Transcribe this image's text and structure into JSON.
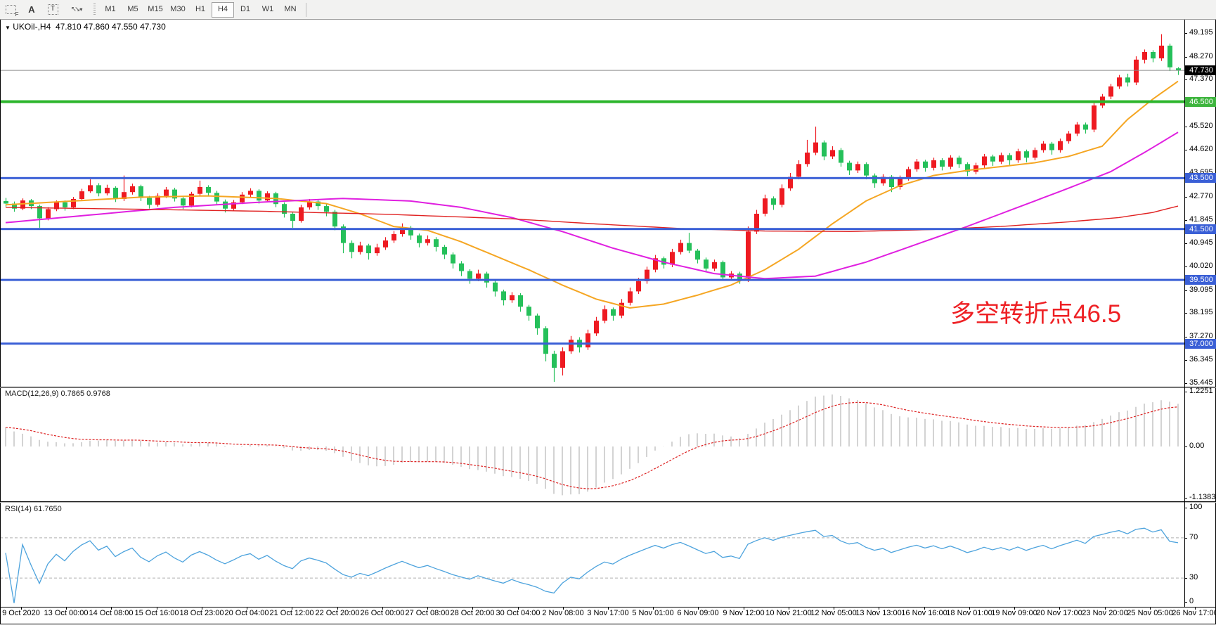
{
  "toolbar": {
    "icons": [
      {
        "name": "fibonacci-tool-icon",
        "glyph": "F"
      },
      {
        "name": "text-label-tool-icon",
        "glyph": "A"
      },
      {
        "name": "text-tool-icon",
        "glyph": "T"
      },
      {
        "name": "arrow-objects-icon",
        "glyph": "arrows"
      }
    ],
    "timeframes": [
      {
        "label": "M1",
        "active": false
      },
      {
        "label": "M5",
        "active": false
      },
      {
        "label": "M15",
        "active": false
      },
      {
        "label": "M30",
        "active": false
      },
      {
        "label": "H1",
        "active": false
      },
      {
        "label": "H4",
        "active": true
      },
      {
        "label": "D1",
        "active": false
      },
      {
        "label": "W1",
        "active": false
      },
      {
        "label": "MN",
        "active": false
      }
    ]
  },
  "title": {
    "symbol_period": "UKOil-,H4",
    "ohlc": "47.810 47.860 47.550 47.730"
  },
  "annotation": {
    "text": "多空转折点46.5"
  },
  "colors": {
    "bull": "#ee1a21",
    "bear": "#25c05a",
    "ma_fast": "#f5a623",
    "ma_mid": "#e020e0",
    "ma_slow": "#e02222",
    "level_blue": "#3a5fd6",
    "level_green": "#2cb52c",
    "current_line": "#8a8a8a",
    "badge_current": "#000000",
    "badge_green": "#3eb53e",
    "badge_blue": "#3a5fd6",
    "rsi_line": "#4da3dd",
    "macd_hist": "#c0c0c0",
    "macd_signal": "#dd2222",
    "annotation_red": "#ee2024"
  },
  "price_axis": {
    "labels": [
      "49.195",
      "48.270",
      "47.370",
      "45.520",
      "44.620",
      "43.695",
      "42.770",
      "41.845",
      "40.945",
      "40.020",
      "39.095",
      "38.195",
      "37.270",
      "36.345",
      "35.445"
    ],
    "badges": [
      {
        "text": "47.730",
        "type": "current"
      },
      {
        "text": "46.500",
        "type": "green"
      },
      {
        "text": "43.500",
        "type": "blue"
      },
      {
        "text": "41.500",
        "type": "blue"
      },
      {
        "text": "39.500",
        "type": "blue"
      },
      {
        "text": "37.000",
        "type": "blue"
      }
    ]
  },
  "levels": {
    "green": [
      46.5
    ],
    "blue": [
      43.5,
      41.5,
      39.5,
      37.0
    ],
    "current": 47.73
  },
  "macd": {
    "name": "MACD(12,26,9)",
    "values": "0.7865 0.9768",
    "axis": [
      "1.2251",
      "0.00",
      "-1.1383"
    ],
    "params": {
      "fast": 12,
      "slow": 26,
      "signal": 9
    },
    "warmup_offset": 0.5
  },
  "rsi": {
    "name": "RSI(14)",
    "value": "61.7650",
    "axis": [
      "100",
      "70",
      "30",
      "0"
    ],
    "period": 14
  },
  "time_axis": {
    "labels": [
      "9 Oct 2020",
      "13 Oct 00:00",
      "14 Oct 08:00",
      "15 Oct 16:00",
      "18 Oct 23:00",
      "20 Oct 04:00",
      "21 Oct 12:00",
      "22 Oct 20:00",
      "26 Oct 00:00",
      "27 Oct 08:00",
      "28 Oct 20:00",
      "30 Oct 04:00",
      "2 Nov 08:00",
      "3 Nov 17:00",
      "5 Nov 01:00",
      "6 Nov 09:00",
      "9 Nov 12:00",
      "10 Nov 21:00",
      "12 Nov 05:00",
      "13 Nov 13:00",
      "16 Nov 16:00",
      "18 Nov 01:00",
      "19 Nov 09:00",
      "20 Nov 17:00",
      "23 Nov 20:00",
      "25 Nov 05:00",
      "26 Nov 17:00"
    ]
  },
  "chart_data": {
    "type": "candlestick",
    "symbol": "UKOil-",
    "period": "H4",
    "ylim": [
      35.445,
      49.195
    ],
    "candles": [
      [
        42.6,
        42.72,
        42.38,
        42.5
      ],
      [
        42.5,
        42.58,
        42.18,
        42.3
      ],
      [
        42.3,
        42.7,
        42.24,
        42.62
      ],
      [
        42.62,
        42.68,
        42.28,
        42.4
      ],
      [
        42.4,
        42.46,
        41.55,
        41.92
      ],
      [
        41.92,
        42.36,
        41.84,
        42.28
      ],
      [
        42.28,
        42.62,
        42.2,
        42.55
      ],
      [
        42.55,
        42.62,
        42.22,
        42.35
      ],
      [
        42.35,
        42.76,
        42.28,
        42.68
      ],
      [
        42.68,
        43.08,
        42.6,
        42.98
      ],
      [
        42.98,
        43.45,
        42.92,
        43.22
      ],
      [
        43.22,
        43.3,
        42.78,
        42.9
      ],
      [
        42.9,
        43.24,
        42.82,
        43.12
      ],
      [
        43.12,
        43.18,
        42.56,
        42.68
      ],
      [
        42.68,
        43.6,
        42.6,
        42.95
      ],
      [
        42.95,
        43.28,
        42.85,
        43.18
      ],
      [
        43.18,
        43.24,
        42.6,
        42.72
      ],
      [
        42.72,
        42.8,
        42.3,
        42.45
      ],
      [
        42.45,
        42.9,
        42.38,
        42.8
      ],
      [
        42.8,
        43.15,
        42.72,
        43.05
      ],
      [
        43.05,
        43.12,
        42.58,
        42.7
      ],
      [
        42.7,
        42.78,
        42.28,
        42.42
      ],
      [
        42.42,
        42.96,
        42.35,
        42.88
      ],
      [
        42.88,
        43.4,
        42.8,
        43.15
      ],
      [
        43.15,
        43.22,
        42.8,
        42.92
      ],
      [
        42.92,
        43.0,
        42.45,
        42.58
      ],
      [
        42.58,
        42.66,
        42.15,
        42.3
      ],
      [
        42.3,
        42.64,
        42.22,
        42.55
      ],
      [
        42.55,
        42.95,
        42.48,
        42.85
      ],
      [
        42.85,
        43.1,
        42.76,
        43.0
      ],
      [
        43.0,
        43.06,
        42.5,
        42.62
      ],
      [
        42.62,
        42.98,
        42.54,
        42.9
      ],
      [
        42.9,
        42.96,
        42.36,
        42.48
      ],
      [
        42.48,
        42.55,
        41.95,
        42.1
      ],
      [
        42.1,
        42.18,
        41.55,
        41.82
      ],
      [
        41.82,
        42.45,
        41.75,
        42.35
      ],
      [
        42.35,
        42.68,
        42.26,
        42.58
      ],
      [
        42.58,
        42.65,
        42.25,
        42.4
      ],
      [
        42.4,
        42.48,
        42.0,
        42.18
      ],
      [
        42.18,
        42.25,
        41.45,
        41.6
      ],
      [
        41.6,
        41.68,
        40.55,
        40.95
      ],
      [
        40.95,
        41.05,
        40.35,
        40.6
      ],
      [
        40.6,
        41.0,
        40.5,
        40.85
      ],
      [
        40.85,
        40.92,
        40.3,
        40.55
      ],
      [
        40.55,
        40.92,
        40.45,
        40.78
      ],
      [
        40.78,
        41.18,
        40.68,
        41.05
      ],
      [
        41.05,
        41.42,
        40.95,
        41.3
      ],
      [
        41.3,
        41.72,
        41.2,
        41.55
      ],
      [
        41.55,
        41.62,
        41.08,
        41.25
      ],
      [
        41.25,
        41.32,
        40.78,
        40.95
      ],
      [
        40.95,
        41.25,
        40.85,
        41.1
      ],
      [
        41.1,
        41.18,
        40.62,
        40.8
      ],
      [
        40.8,
        40.88,
        40.32,
        40.5
      ],
      [
        40.5,
        40.58,
        39.95,
        40.15
      ],
      [
        40.15,
        40.24,
        39.65,
        39.85
      ],
      [
        39.85,
        39.92,
        39.35,
        39.55
      ],
      [
        39.55,
        39.9,
        39.45,
        39.75
      ],
      [
        39.75,
        39.82,
        39.2,
        39.4
      ],
      [
        39.4,
        39.48,
        38.85,
        39.05
      ],
      [
        39.05,
        39.12,
        38.5,
        38.7
      ],
      [
        38.7,
        39.02,
        38.6,
        38.9
      ],
      [
        38.9,
        38.98,
        38.25,
        38.45
      ],
      [
        38.45,
        38.52,
        37.9,
        38.1
      ],
      [
        38.1,
        38.18,
        37.35,
        37.6
      ],
      [
        37.6,
        37.68,
        36.3,
        36.6
      ],
      [
        36.6,
        36.72,
        35.5,
        36.05
      ],
      [
        36.05,
        36.85,
        35.75,
        36.7
      ],
      [
        36.7,
        37.3,
        36.6,
        37.15
      ],
      [
        37.15,
        37.25,
        36.65,
        36.85
      ],
      [
        36.85,
        37.55,
        36.75,
        37.4
      ],
      [
        37.4,
        38.05,
        37.3,
        37.9
      ],
      [
        37.9,
        38.5,
        37.8,
        38.35
      ],
      [
        38.35,
        38.42,
        37.9,
        38.1
      ],
      [
        38.1,
        38.75,
        38.0,
        38.6
      ],
      [
        38.6,
        39.2,
        38.5,
        39.05
      ],
      [
        39.05,
        39.58,
        38.95,
        39.45
      ],
      [
        39.45,
        40.02,
        39.35,
        39.9
      ],
      [
        39.9,
        40.48,
        39.8,
        40.35
      ],
      [
        40.35,
        40.42,
        39.95,
        40.1
      ],
      [
        40.1,
        40.72,
        40.0,
        40.6
      ],
      [
        40.6,
        41.08,
        40.5,
        40.95
      ],
      [
        40.95,
        41.35,
        40.55,
        40.65
      ],
      [
        40.65,
        40.72,
        40.15,
        40.3
      ],
      [
        40.3,
        40.38,
        39.82,
        39.95
      ],
      [
        39.95,
        40.3,
        39.85,
        40.2
      ],
      [
        40.2,
        40.26,
        39.48,
        39.6
      ],
      [
        39.6,
        39.85,
        39.5,
        39.75
      ],
      [
        39.75,
        39.82,
        39.35,
        39.5
      ],
      [
        39.55,
        41.6,
        39.42,
        41.4
      ],
      [
        41.4,
        42.25,
        41.3,
        42.1
      ],
      [
        42.1,
        42.85,
        42.0,
        42.7
      ],
      [
        42.7,
        42.78,
        42.25,
        42.45
      ],
      [
        42.45,
        43.25,
        42.35,
        43.1
      ],
      [
        43.1,
        43.7,
        43.0,
        43.55
      ],
      [
        43.55,
        44.2,
        43.45,
        44.05
      ],
      [
        44.05,
        45.0,
        43.95,
        44.5
      ],
      [
        44.5,
        45.52,
        44.4,
        44.9
      ],
      [
        44.9,
        44.98,
        44.2,
        44.35
      ],
      [
        44.35,
        44.75,
        44.25,
        44.6
      ],
      [
        44.6,
        44.68,
        43.95,
        44.1
      ],
      [
        44.1,
        44.18,
        43.62,
        43.8
      ],
      [
        43.8,
        44.15,
        43.7,
        44.05
      ],
      [
        44.05,
        44.12,
        43.45,
        43.6
      ],
      [
        43.6,
        43.68,
        43.12,
        43.3
      ],
      [
        43.3,
        43.65,
        43.2,
        43.55
      ],
      [
        43.55,
        43.62,
        42.95,
        43.15
      ],
      [
        43.15,
        43.6,
        43.05,
        43.5
      ],
      [
        43.5,
        43.95,
        43.4,
        43.85
      ],
      [
        43.85,
        44.25,
        43.75,
        44.15
      ],
      [
        44.15,
        44.22,
        43.75,
        43.9
      ],
      [
        43.9,
        44.3,
        43.8,
        44.2
      ],
      [
        44.2,
        44.28,
        43.8,
        43.95
      ],
      [
        43.95,
        44.4,
        43.85,
        44.3
      ],
      [
        44.3,
        44.38,
        43.9,
        44.05
      ],
      [
        44.05,
        44.12,
        43.58,
        43.75
      ],
      [
        43.75,
        44.1,
        43.65,
        44.0
      ],
      [
        44.0,
        44.45,
        43.9,
        44.35
      ],
      [
        44.35,
        44.42,
        43.98,
        44.15
      ],
      [
        44.15,
        44.5,
        44.05,
        44.4
      ],
      [
        44.4,
        44.48,
        44.02,
        44.2
      ],
      [
        44.2,
        44.65,
        44.1,
        44.55
      ],
      [
        44.55,
        44.62,
        44.12,
        44.3
      ],
      [
        44.3,
        44.7,
        44.2,
        44.6
      ],
      [
        44.6,
        44.95,
        44.5,
        44.85
      ],
      [
        44.85,
        44.92,
        44.42,
        44.6
      ],
      [
        44.6,
        45.05,
        44.5,
        44.95
      ],
      [
        44.95,
        45.35,
        44.85,
        45.25
      ],
      [
        45.25,
        45.7,
        45.15,
        45.6
      ],
      [
        45.6,
        45.68,
        45.25,
        45.4
      ],
      [
        45.4,
        46.45,
        45.3,
        46.35
      ],
      [
        46.35,
        46.8,
        46.25,
        46.7
      ],
      [
        46.7,
        47.2,
        46.6,
        47.1
      ],
      [
        47.1,
        47.55,
        47.0,
        47.45
      ],
      [
        47.45,
        47.6,
        47.1,
        47.25
      ],
      [
        47.25,
        48.28,
        47.15,
        48.15
      ],
      [
        48.15,
        48.55,
        48.0,
        48.45
      ],
      [
        48.45,
        48.52,
        48.05,
        48.2
      ],
      [
        48.2,
        49.15,
        48.1,
        48.7
      ],
      [
        48.7,
        48.78,
        47.7,
        47.85
      ],
      [
        47.81,
        47.86,
        47.55,
        47.73
      ]
    ],
    "ma_overlays": {
      "fast": [
        [
          0,
          42.45
        ],
        [
          8,
          42.6
        ],
        [
          16,
          42.75
        ],
        [
          24,
          42.8
        ],
        [
          32,
          42.7
        ],
        [
          38,
          42.5
        ],
        [
          42,
          42.1
        ],
        [
          46,
          41.6
        ],
        [
          50,
          41.45
        ],
        [
          54,
          41.0
        ],
        [
          58,
          40.45
        ],
        [
          62,
          39.9
        ],
        [
          66,
          39.3
        ],
        [
          70,
          38.75
        ],
        [
          74,
          38.4
        ],
        [
          78,
          38.55
        ],
        [
          82,
          38.9
        ],
        [
          86,
          39.3
        ],
        [
          90,
          39.9
        ],
        [
          94,
          40.7
        ],
        [
          98,
          41.7
        ],
        [
          102,
          42.6
        ],
        [
          106,
          43.2
        ],
        [
          110,
          43.6
        ],
        [
          114,
          43.8
        ],
        [
          118,
          43.95
        ],
        [
          122,
          44.1
        ],
        [
          126,
          44.35
        ],
        [
          130,
          44.75
        ],
        [
          133,
          45.8
        ],
        [
          136,
          46.6
        ],
        [
          139,
          47.3
        ]
      ],
      "mid": [
        [
          0,
          41.75
        ],
        [
          10,
          42.05
        ],
        [
          20,
          42.35
        ],
        [
          30,
          42.55
        ],
        [
          40,
          42.7
        ],
        [
          48,
          42.6
        ],
        [
          54,
          42.35
        ],
        [
          60,
          41.95
        ],
        [
          66,
          41.4
        ],
        [
          72,
          40.75
        ],
        [
          78,
          40.2
        ],
        [
          84,
          39.75
        ],
        [
          90,
          39.55
        ],
        [
          96,
          39.65
        ],
        [
          102,
          40.2
        ],
        [
          108,
          40.9
        ],
        [
          114,
          41.6
        ],
        [
          120,
          42.35
        ],
        [
          126,
          43.1
        ],
        [
          131,
          43.75
        ],
        [
          135,
          44.5
        ],
        [
          139,
          45.3
        ]
      ],
      "slow": [
        [
          0,
          42.35
        ],
        [
          15,
          42.28
        ],
        [
          30,
          42.2
        ],
        [
          45,
          42.08
        ],
        [
          60,
          41.9
        ],
        [
          70,
          41.7
        ],
        [
          80,
          41.52
        ],
        [
          90,
          41.42
        ],
        [
          100,
          41.4
        ],
        [
          110,
          41.48
        ],
        [
          118,
          41.6
        ],
        [
          126,
          41.78
        ],
        [
          132,
          41.95
        ],
        [
          136,
          42.15
        ],
        [
          139,
          42.4
        ]
      ]
    }
  }
}
